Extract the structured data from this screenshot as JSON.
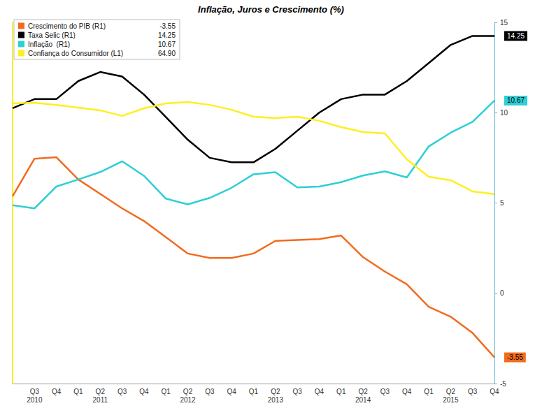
{
  "chart_data": {
    "type": "line",
    "title": "Inflação, Juros e Crescimento (%)",
    "categories": [
      null,
      "Q3",
      "Q4",
      "Q1",
      "Q2",
      "Q3",
      "Q4",
      "Q1",
      "Q2",
      "Q3",
      "Q4",
      "Q1",
      "Q2",
      "Q3",
      "Q4",
      "Q1",
      "Q2",
      "Q3",
      "Q4",
      "Q1",
      "Q2",
      "Q3",
      "Q4"
    ],
    "year_labels": [
      null,
      "2010",
      null,
      null,
      "2011",
      null,
      null,
      null,
      "2012",
      null,
      null,
      null,
      "2013",
      null,
      null,
      null,
      "2014",
      null,
      null,
      null,
      "2015",
      null,
      null
    ],
    "series": [
      {
        "name": "Crescimento do PIB (R1)",
        "color": "#f26b1d",
        "axis": "y",
        "values": [
          5.37,
          7.45,
          7.53,
          6.3,
          5.5,
          4.7,
          4.0,
          3.1,
          2.2,
          1.95,
          1.95,
          2.2,
          2.9,
          2.95,
          3.0,
          3.2,
          2.0,
          1.2,
          0.5,
          -0.75,
          -1.3,
          -2.2,
          -3.55
        ]
      },
      {
        "name": "Taxa Selic (R1)",
        "color": "#000000",
        "axis": "y",
        "values": [
          10.25,
          10.75,
          10.75,
          11.75,
          12.25,
          12.0,
          11.0,
          9.75,
          8.5,
          7.5,
          7.25,
          7.25,
          8.0,
          9.0,
          10.0,
          10.75,
          11.0,
          11.0,
          11.75,
          12.75,
          13.75,
          14.25,
          14.25
        ]
      },
      {
        "name": "Inflação  (R1)",
        "color": "#2ecfd6",
        "axis": "y",
        "values": [
          4.87,
          4.7,
          5.91,
          6.3,
          6.71,
          7.31,
          6.5,
          5.24,
          4.92,
          5.28,
          5.84,
          6.59,
          6.7,
          5.86,
          5.91,
          6.15,
          6.52,
          6.75,
          6.41,
          8.13,
          8.89,
          9.49,
          10.67
        ]
      },
      {
        "name": "Confiança do Consumidor (L1)",
        "color": "#ffee22",
        "axis": "y2",
        "values": [
          115.1,
          115.5,
          114.3,
          112.8,
          111.3,
          108.2,
          112.4,
          115.1,
          115.9,
          114.3,
          111.6,
          107.8,
          107.0,
          107.8,
          105.5,
          102.0,
          99.3,
          98.5,
          84.2,
          74.5,
          72.6,
          66.4,
          64.9
        ]
      }
    ],
    "ylim": [
      -5,
      15
    ],
    "yticks": [
      -5,
      0,
      5,
      10,
      15
    ],
    "y2lim": [
      -40,
      160
    ],
    "grid": false,
    "legend": "upper left"
  }
}
